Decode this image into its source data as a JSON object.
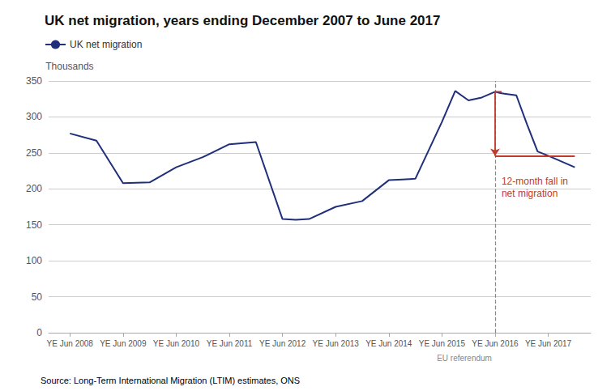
{
  "chart_data": {
    "type": "line",
    "title": "UK net migration, years ending December 2007 to June 2017",
    "x": [
      0,
      0.5,
      1,
      1.5,
      2,
      2.5,
      3,
      3.5,
      4,
      4.25,
      4.5,
      5,
      5.5,
      6,
      6.25,
      6.5,
      7,
      7.25,
      7.5,
      7.75,
      8,
      8.1,
      8.2,
      8.4,
      8.6,
      8.8,
      9,
      9.5
    ],
    "series": [
      {
        "name": "UK net migration",
        "color": "#1f2f7a",
        "values": [
          277,
          267,
          208,
          209,
          230,
          244,
          262,
          265,
          158,
          157,
          158,
          175,
          183,
          212,
          213,
          214,
          293,
          336,
          323,
          327,
          335,
          333,
          332,
          330,
          290,
          252,
          246,
          230
        ]
      }
    ],
    "xlim": [
      -0.4,
      9.8
    ],
    "xticks": [
      {
        "value": 0,
        "label": "YE Jun 2008"
      },
      {
        "value": 1,
        "label": "YE Jun 2009"
      },
      {
        "value": 2,
        "label": "YE Jun 2010"
      },
      {
        "value": 3,
        "label": "YE Jun 2011"
      },
      {
        "value": 4,
        "label": "YE Jun 2012"
      },
      {
        "value": 5,
        "label": "YE Jun 2013"
      },
      {
        "value": 6,
        "label": "YE Jun 2014"
      },
      {
        "value": 7,
        "label": "YE Jun 2015"
      },
      {
        "value": 8,
        "label": "YE Jun 2016"
      },
      {
        "value": 9,
        "label": "YE Jun 2017"
      }
    ],
    "ylim": [
      0,
      350
    ],
    "yticks": [
      0,
      50,
      100,
      150,
      200,
      250,
      300,
      350
    ],
    "y_label": "Thousands",
    "grid": true,
    "legend": "upper left",
    "reference_line": {
      "x": 8,
      "label": "EU referendum",
      "color": "#888888",
      "line_style": "dashed"
    },
    "bracket": {
      "x": 8,
      "top": 335,
      "bottom": 246,
      "end_x": 9.5,
      "text": "12-month fall in\nnet migration",
      "color": "#c0392b"
    },
    "source": [
      {
        "text": "Source: ",
        "color": "#555555"
      },
      {
        "text": "Long-Term International Migration (LTIM) estimates, ONS",
        "color": "#3b82c4"
      }
    ]
  }
}
